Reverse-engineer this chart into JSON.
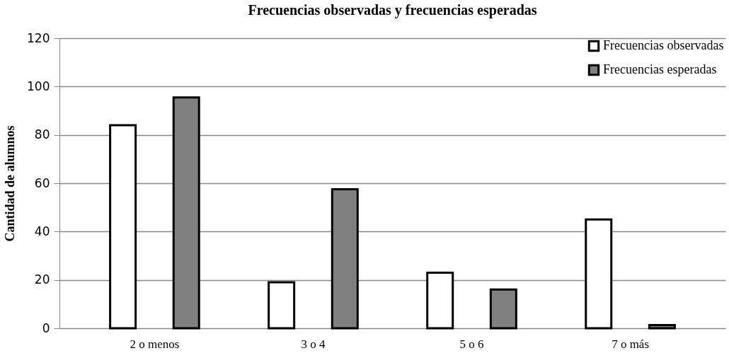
{
  "chart_data": {
    "type": "bar",
    "title": "Frecuencias observadas y frecuencias esperadas",
    "ylabel": "Cantidad de alumnos",
    "categories": [
      "2 o menos",
      "3 o 4",
      "5 o 6",
      "7 o más"
    ],
    "series": [
      {
        "name": "Frecuencias observadas",
        "color": "#ffffff",
        "values": [
          84,
          19,
          23,
          45
        ]
      },
      {
        "name": "Frecuencias esperadas",
        "color": "#808080",
        "values": [
          95.5,
          57.5,
          16,
          1.3
        ]
      }
    ],
    "ylim": [
      0,
      120
    ],
    "yticks": [
      0,
      20,
      40,
      60,
      80,
      100,
      120
    ],
    "grid": "y",
    "legend": "top right"
  }
}
